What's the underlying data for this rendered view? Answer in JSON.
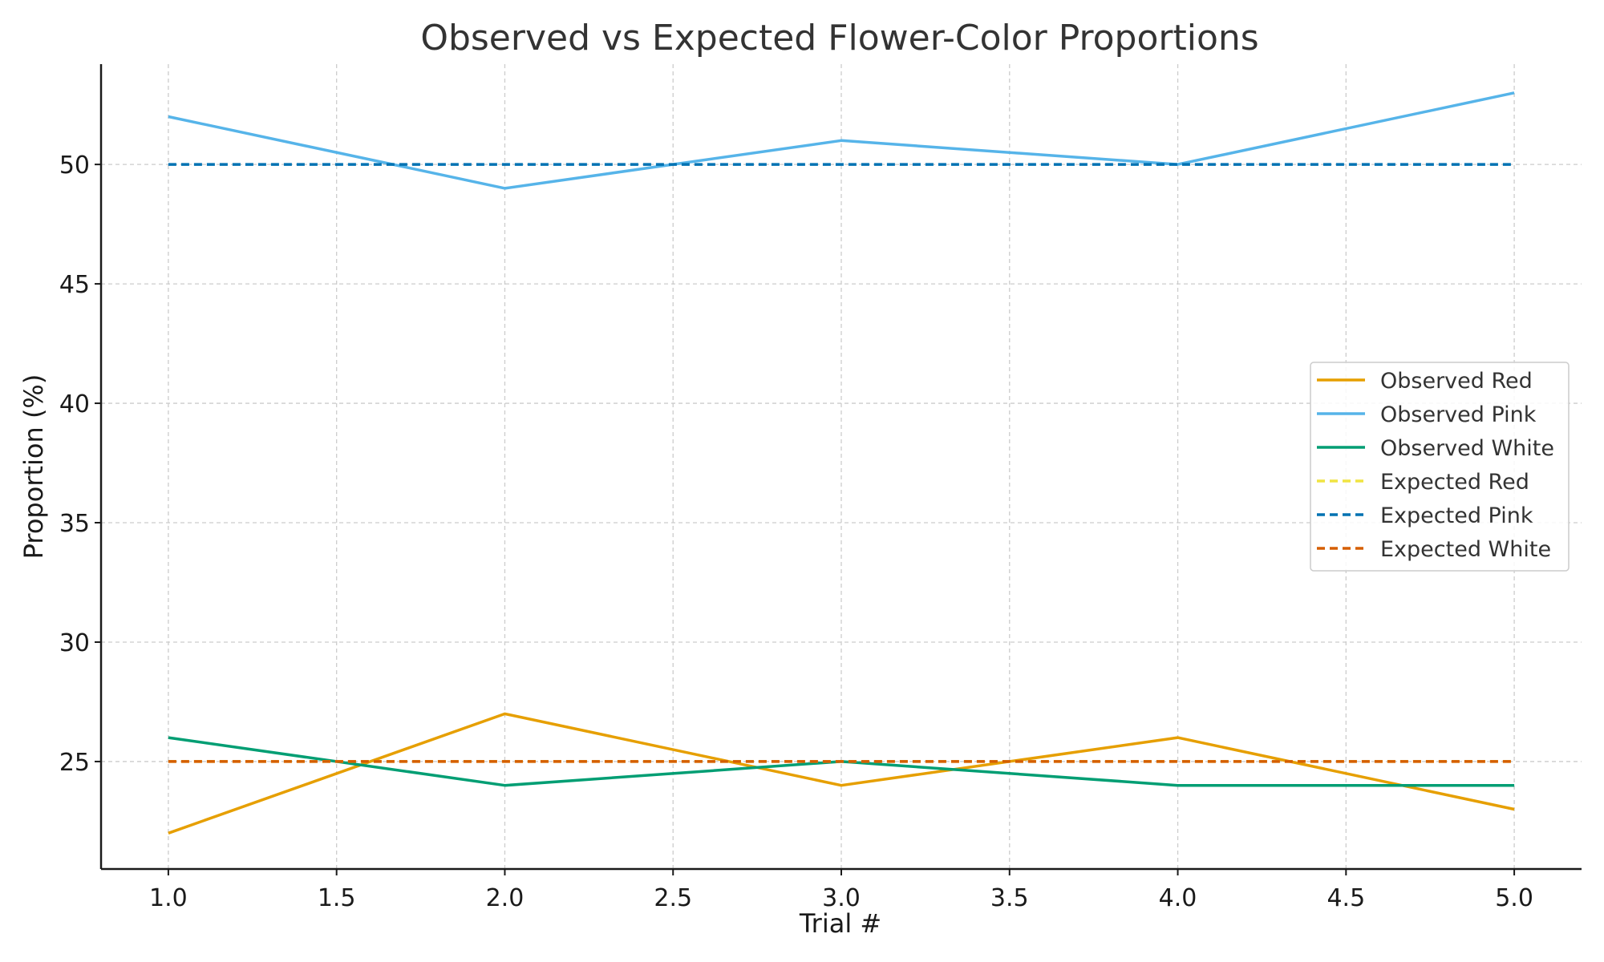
{
  "chart_data": {
    "type": "line",
    "title": "Observed vs Expected Flower-Color Proportions",
    "xlabel": "Trial #",
    "ylabel": "Proportion (%)",
    "x": [
      1,
      2,
      3,
      4,
      5
    ],
    "xlim": [
      0.8,
      5.2
    ],
    "ylim": [
      20.5,
      54.2
    ],
    "xticks": [
      "1.0",
      "1.5",
      "2.0",
      "2.5",
      "3.0",
      "3.5",
      "4.0",
      "4.5",
      "5.0"
    ],
    "yticks": [
      "25",
      "30",
      "35",
      "40",
      "45",
      "50"
    ],
    "grid": true,
    "legend_position": "right",
    "series": [
      {
        "name": "Observed Red",
        "values": [
          22,
          27,
          24,
          26,
          23
        ],
        "color": "#E69F00",
        "dashed": false
      },
      {
        "name": "Observed Pink",
        "values": [
          52,
          49,
          51,
          50,
          53
        ],
        "color": "#56B4E9",
        "dashed": false
      },
      {
        "name": "Observed White",
        "values": [
          26,
          24,
          25,
          24,
          24
        ],
        "color": "#009E73",
        "dashed": false
      },
      {
        "name": "Expected Red",
        "values": [
          25,
          25,
          25,
          25,
          25
        ],
        "color": "#F0E442",
        "dashed": true
      },
      {
        "name": "Expected Pink",
        "values": [
          50,
          50,
          50,
          50,
          50
        ],
        "color": "#0072B2",
        "dashed": true
      },
      {
        "name": "Expected White",
        "values": [
          25,
          25,
          25,
          25,
          25
        ],
        "color": "#D55E00",
        "dashed": true
      }
    ]
  }
}
